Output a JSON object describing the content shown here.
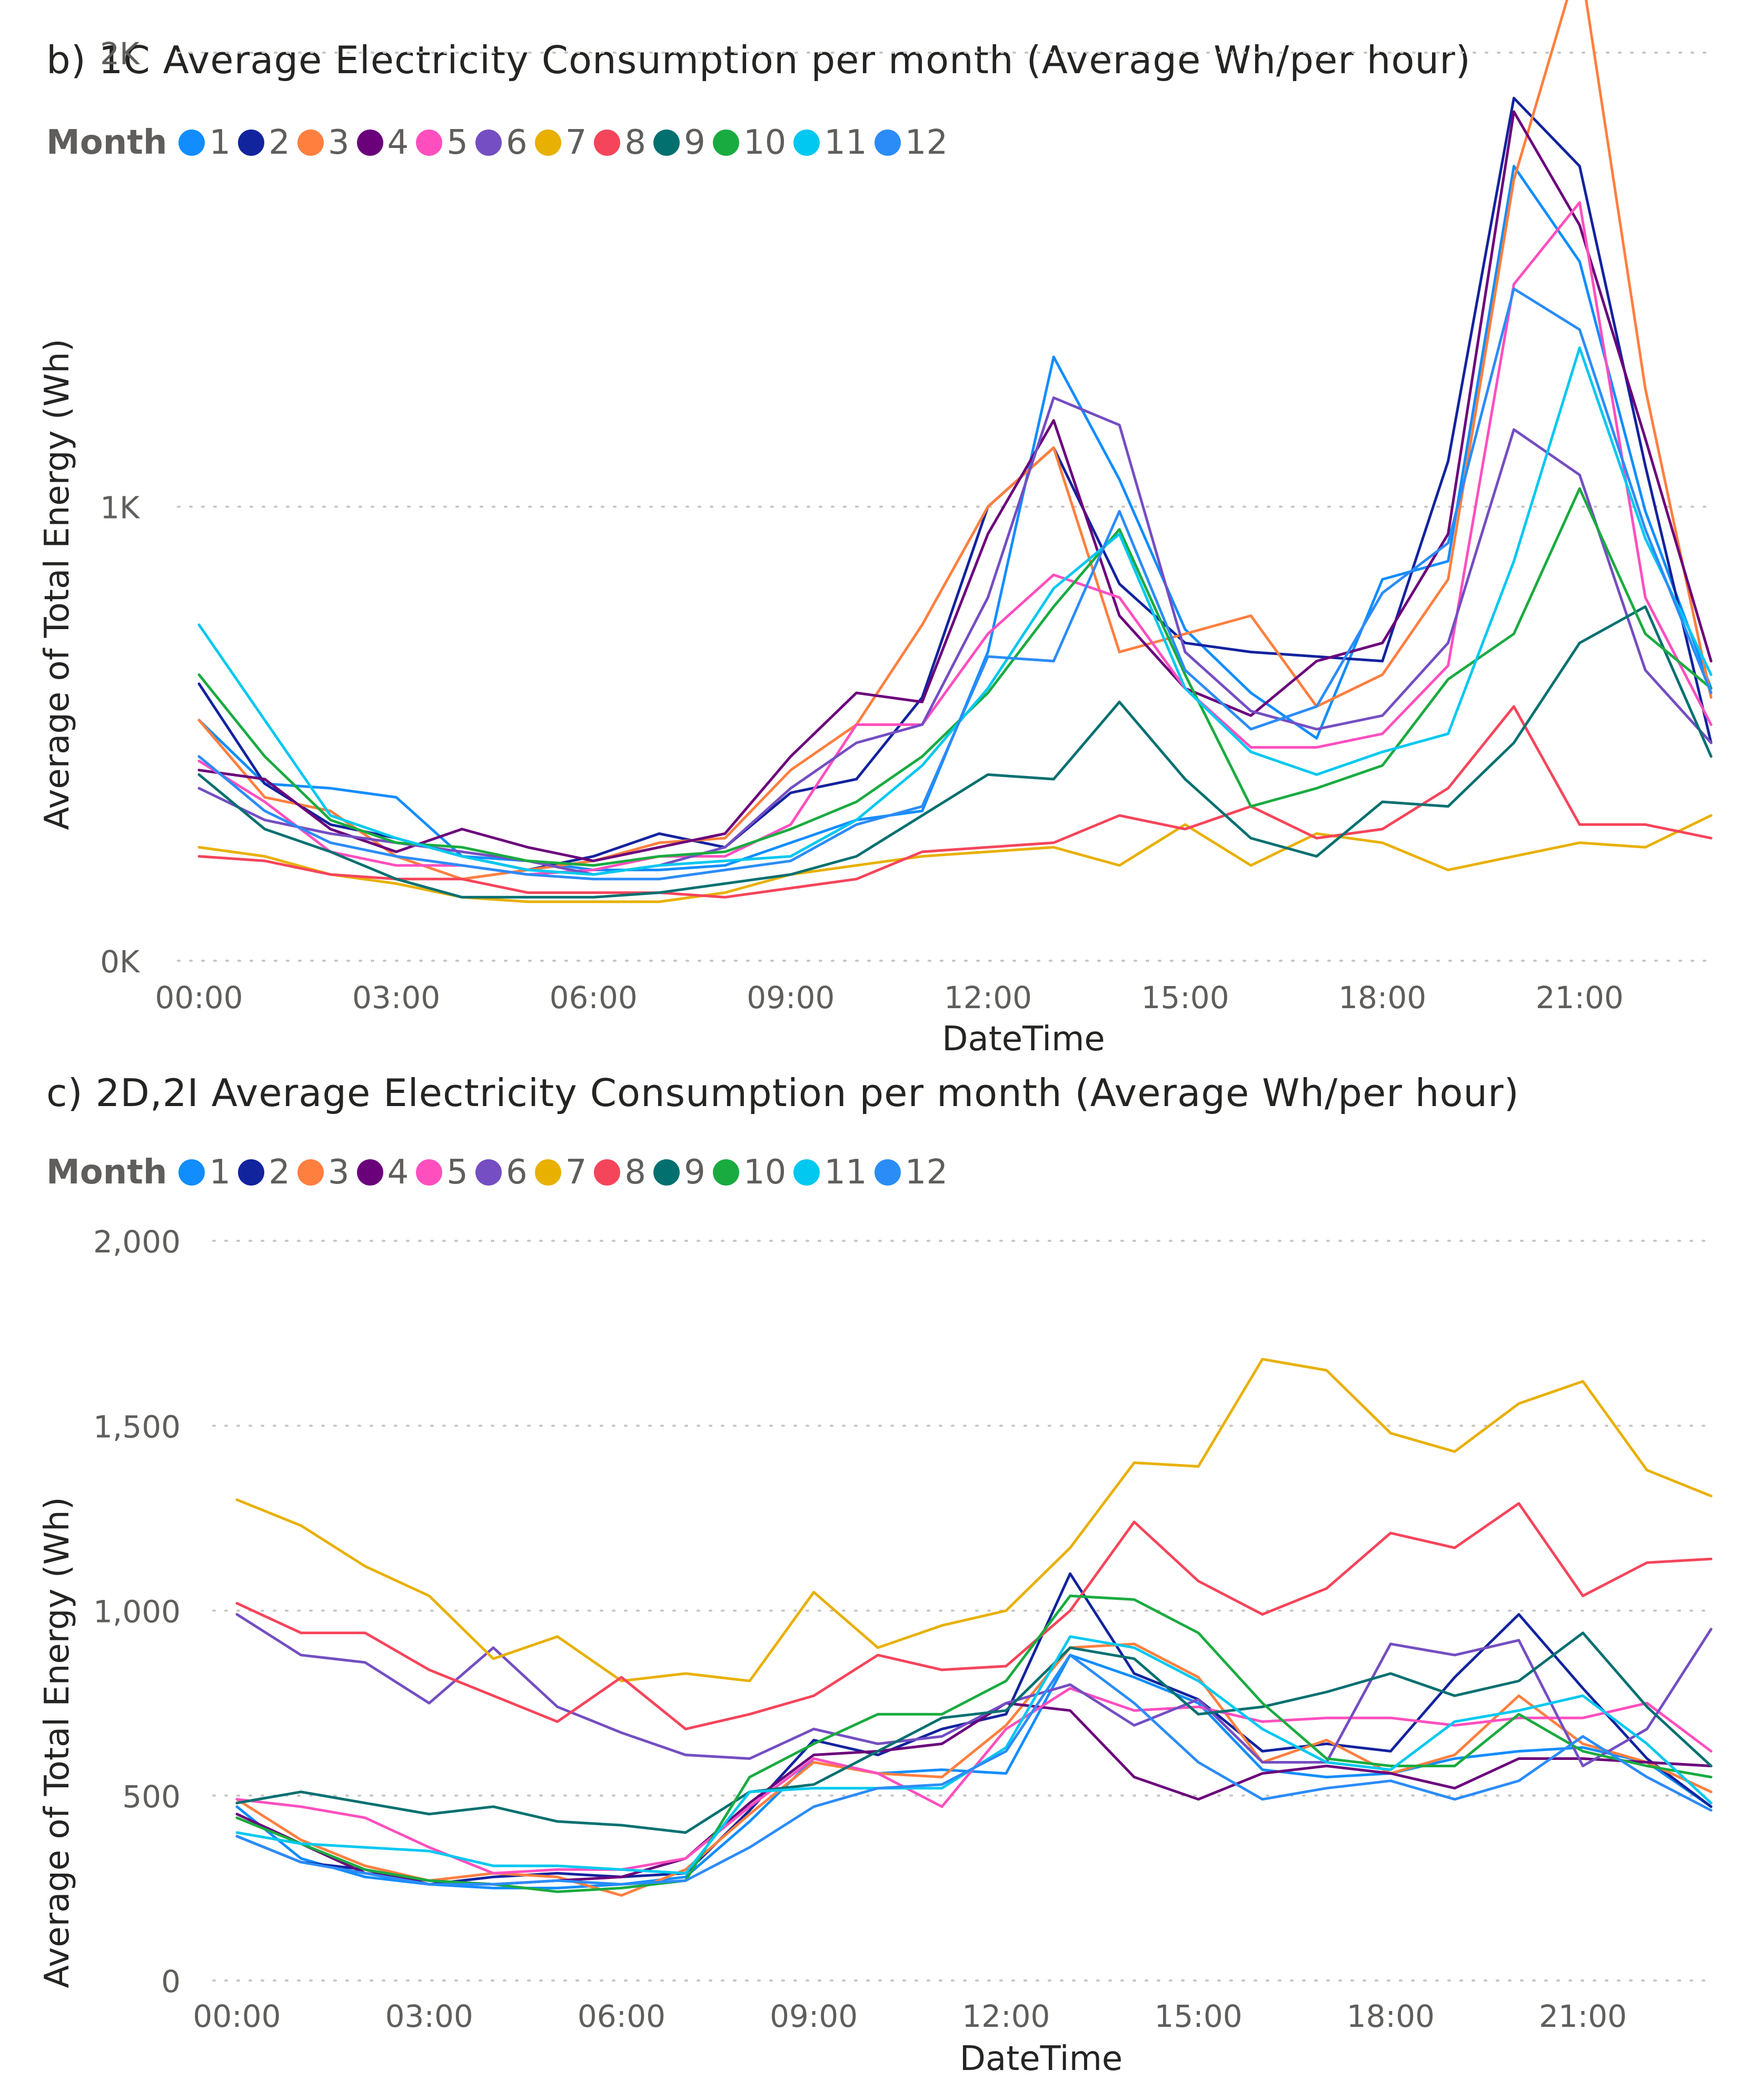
{
  "legend": {
    "title": "Month",
    "items": [
      {
        "label": "1",
        "color": "#118DFF"
      },
      {
        "label": "2",
        "color": "#12239E"
      },
      {
        "label": "3",
        "color": "#FF7F3F"
      },
      {
        "label": "4",
        "color": "#6B007B"
      },
      {
        "label": "5",
        "color": "#FF4FBF"
      },
      {
        "label": "6",
        "color": "#744EC2"
      },
      {
        "label": "7",
        "color": "#E8B000"
      },
      {
        "label": "8",
        "color": "#F5455B"
      },
      {
        "label": "9",
        "color": "#037070"
      },
      {
        "label": "10",
        "color": "#1AAB40"
      },
      {
        "label": "11",
        "color": "#00C8F0"
      },
      {
        "label": "12",
        "color": "#2B8CF8"
      }
    ]
  },
  "chart_data": [
    {
      "type": "line",
      "title": "b) 1C Average Electricity Consumption per month (Average Wh/per hour)",
      "xlabel": "DateTime",
      "ylabel": "Average of Total Energy (Wh)",
      "xticks": [
        "00:00",
        "03:00",
        "06:00",
        "09:00",
        "12:00",
        "15:00",
        "18:00",
        "21:00"
      ],
      "yticks": [
        0,
        1000,
        2000
      ],
      "ytick_labels": [
        "0K",
        "1K",
        "2K"
      ],
      "ylim": [
        0,
        2000
      ],
      "grid": true,
      "legend_position": "top-left",
      "x": [
        0,
        1,
        2,
        3,
        4,
        5,
        6,
        7,
        8,
        9,
        10,
        11,
        12,
        13,
        14,
        15,
        16,
        17,
        18,
        19,
        20,
        21,
        22,
        23
      ],
      "series": [
        {
          "name": "1",
          "values": [
            530,
            390,
            380,
            360,
            230,
            220,
            200,
            200,
            210,
            260,
            310,
            330,
            680,
            1330,
            1060,
            730,
            590,
            490,
            840,
            880,
            1750,
            1540,
            990,
            600
          ]
        },
        {
          "name": "2",
          "values": [
            610,
            390,
            300,
            270,
            230,
            200,
            230,
            280,
            250,
            370,
            400,
            580,
            1000,
            1130,
            830,
            700,
            680,
            670,
            660,
            1100,
            1900,
            1750,
            1090,
            480
          ]
        },
        {
          "name": "3",
          "values": [
            530,
            360,
            330,
            230,
            180,
            200,
            220,
            260,
            270,
            420,
            520,
            740,
            1000,
            1130,
            680,
            720,
            760,
            560,
            630,
            840,
            1720,
            2210,
            1260,
            580
          ]
        },
        {
          "name": "4",
          "values": [
            420,
            400,
            290,
            240,
            290,
            250,
            220,
            250,
            280,
            450,
            590,
            570,
            940,
            1190,
            760,
            600,
            540,
            660,
            700,
            940,
            1870,
            1620,
            1150,
            660
          ]
        },
        {
          "name": "5",
          "values": [
            440,
            350,
            240,
            210,
            210,
            190,
            200,
            230,
            230,
            300,
            520,
            520,
            720,
            850,
            800,
            600,
            470,
            470,
            500,
            650,
            1490,
            1670,
            800,
            520
          ]
        },
        {
          "name": "6",
          "values": [
            380,
            310,
            280,
            260,
            240,
            220,
            190,
            210,
            250,
            380,
            480,
            520,
            800,
            1240,
            1180,
            680,
            550,
            510,
            540,
            700,
            1170,
            1070,
            640,
            480
          ]
        },
        {
          "name": "7",
          "values": [
            250,
            230,
            190,
            170,
            140,
            130,
            130,
            130,
            150,
            190,
            210,
            230,
            240,
            250,
            210,
            300,
            210,
            280,
            260,
            200,
            230,
            260,
            250,
            320
          ]
        },
        {
          "name": "8",
          "values": [
            230,
            220,
            190,
            180,
            180,
            150,
            150,
            150,
            140,
            160,
            180,
            240,
            250,
            260,
            320,
            290,
            340,
            270,
            290,
            380,
            560,
            300,
            300,
            270
          ]
        },
        {
          "name": "9",
          "values": [
            410,
            290,
            240,
            180,
            140,
            140,
            140,
            150,
            170,
            190,
            230,
            320,
            410,
            400,
            570,
            400,
            270,
            230,
            350,
            340,
            480,
            700,
            780,
            450
          ]
        },
        {
          "name": "10",
          "values": [
            630,
            450,
            310,
            260,
            250,
            220,
            210,
            230,
            240,
            290,
            350,
            450,
            590,
            780,
            950,
            630,
            340,
            380,
            430,
            620,
            720,
            1040,
            720,
            600
          ]
        },
        {
          "name": "11",
          "values": [
            740,
            530,
            320,
            270,
            230,
            200,
            190,
            210,
            220,
            230,
            310,
            430,
            600,
            820,
            940,
            600,
            460,
            410,
            460,
            500,
            880,
            1350,
            930,
            630
          ]
        },
        {
          "name": "12",
          "values": [
            450,
            330,
            260,
            230,
            210,
            190,
            180,
            180,
            200,
            220,
            300,
            340,
            670,
            660,
            990,
            640,
            510,
            560,
            810,
            920,
            1480,
            1390,
            950,
            590
          ]
        }
      ]
    },
    {
      "type": "line",
      "title": "c) 2D,2I Average Electricity Consumption per month (Average Wh/per hour)",
      "xlabel": "DateTime",
      "ylabel": "Average of Total Energy (Wh)",
      "xticks": [
        "00:00",
        "03:00",
        "06:00",
        "09:00",
        "12:00",
        "15:00",
        "18:00",
        "21:00"
      ],
      "yticks": [
        0,
        500,
        1000,
        1500,
        2000
      ],
      "ytick_labels": [
        "0",
        "500",
        "1,000",
        "1,500",
        "2,000"
      ],
      "ylim": [
        0,
        2000
      ],
      "grid": true,
      "legend_position": "top-left",
      "x": [
        0,
        1,
        2,
        3,
        4,
        5,
        6,
        7,
        8,
        9,
        10,
        11,
        12,
        13,
        14,
        15,
        16,
        17,
        18,
        19,
        20,
        21,
        22,
        23
      ],
      "series": [
        {
          "name": "1",
          "values": [
            470,
            330,
            280,
            260,
            250,
            250,
            260,
            280,
            430,
            600,
            560,
            570,
            560,
            880,
            820,
            750,
            570,
            550,
            560,
            600,
            620,
            630,
            590,
            470
          ]
        },
        {
          "name": "2",
          "values": [
            390,
            320,
            300,
            260,
            280,
            290,
            280,
            290,
            460,
            650,
            610,
            680,
            720,
            1100,
            830,
            760,
            620,
            640,
            620,
            820,
            990,
            790,
            600,
            470
          ]
        },
        {
          "name": "3",
          "values": [
            490,
            380,
            310,
            270,
            290,
            280,
            230,
            300,
            450,
            590,
            560,
            550,
            690,
            900,
            910,
            820,
            590,
            650,
            560,
            610,
            770,
            640,
            590,
            510
          ]
        },
        {
          "name": "4",
          "values": [
            450,
            370,
            290,
            270,
            260,
            270,
            280,
            330,
            480,
            610,
            620,
            640,
            750,
            730,
            550,
            490,
            560,
            580,
            560,
            520,
            600,
            600,
            590,
            580
          ]
        },
        {
          "name": "5",
          "values": [
            490,
            470,
            440,
            360,
            290,
            300,
            300,
            330,
            470,
            600,
            560,
            470,
            680,
            790,
            730,
            740,
            700,
            710,
            710,
            690,
            710,
            710,
            750,
            620
          ]
        },
        {
          "name": "6",
          "values": [
            990,
            880,
            860,
            750,
            900,
            740,
            670,
            610,
            600,
            680,
            640,
            660,
            750,
            800,
            690,
            760,
            590,
            590,
            910,
            880,
            920,
            580,
            680,
            950
          ]
        },
        {
          "name": "7",
          "values": [
            1300,
            1230,
            1120,
            1040,
            870,
            930,
            810,
            830,
            810,
            1050,
            900,
            960,
            1000,
            1170,
            1400,
            1390,
            1680,
            1650,
            1480,
            1430,
            1560,
            1620,
            1380,
            1310
          ]
        },
        {
          "name": "8",
          "values": [
            1020,
            940,
            940,
            840,
            770,
            700,
            820,
            680,
            720,
            770,
            880,
            840,
            850,
            1000,
            1240,
            1080,
            990,
            1060,
            1210,
            1170,
            1290,
            1040,
            1130,
            1140
          ]
        },
        {
          "name": "9",
          "values": [
            480,
            510,
            480,
            450,
            470,
            430,
            420,
            400,
            510,
            530,
            620,
            710,
            730,
            900,
            870,
            720,
            740,
            780,
            830,
            770,
            810,
            940,
            740,
            580
          ]
        },
        {
          "name": "10",
          "values": [
            440,
            370,
            300,
            270,
            260,
            240,
            250,
            270,
            550,
            640,
            720,
            720,
            810,
            1040,
            1030,
            940,
            750,
            600,
            580,
            580,
            720,
            620,
            580,
            550
          ]
        },
        {
          "name": "11",
          "values": [
            400,
            370,
            360,
            350,
            310,
            310,
            300,
            290,
            510,
            520,
            520,
            520,
            630,
            930,
            900,
            810,
            680,
            590,
            570,
            700,
            730,
            770,
            640,
            480
          ]
        },
        {
          "name": "12",
          "values": [
            390,
            320,
            290,
            260,
            260,
            270,
            260,
            270,
            360,
            470,
            520,
            530,
            620,
            880,
            750,
            590,
            490,
            520,
            540,
            490,
            540,
            660,
            550,
            460
          ]
        }
      ]
    }
  ]
}
